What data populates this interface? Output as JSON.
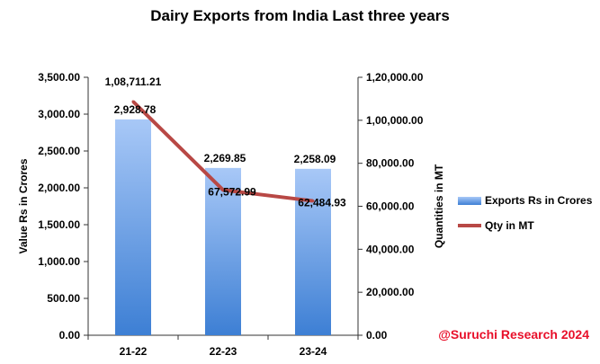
{
  "chart_data": {
    "type": "bar",
    "title": "Dairy Exports from India Last three years",
    "categories": [
      "21-22",
      "22-23",
      "23-24"
    ],
    "series": [
      {
        "name": "Exports Rs in Crores",
        "type": "bar",
        "axis": "left",
        "values": [
          2928.78,
          2269.85,
          2258.09
        ],
        "labels": [
          "2,928.78",
          "2,269.85",
          "2,258.09"
        ],
        "color_top": "#a8c8f7",
        "color_bottom": "#3d7fd4"
      },
      {
        "name": "Qty in MT",
        "type": "line",
        "axis": "right",
        "values": [
          108711.21,
          67572.99,
          62484.93
        ],
        "labels": [
          "1,08,711.21",
          "67,572.99",
          "62,484.93"
        ],
        "color": "#b84845"
      }
    ],
    "ylabel": "Value Rs in Crores",
    "y2label": "Quantities in MT",
    "ylim": [
      0,
      3500
    ],
    "y2lim": [
      0,
      120000
    ],
    "yticks": [
      "0.00",
      "500.00",
      "1,000.00",
      "1,500.00",
      "2,000.00",
      "2,500.00",
      "3,000.00",
      "3,500.00"
    ],
    "y2ticks": [
      "0.00",
      "20,000.00",
      "40,000.00",
      "60,000.00",
      "80,000.00",
      "1,00,000.00",
      "1,20,000.00"
    ],
    "grid": false,
    "legend_position": "right"
  },
  "watermark": "@Suruchi Research 2024"
}
